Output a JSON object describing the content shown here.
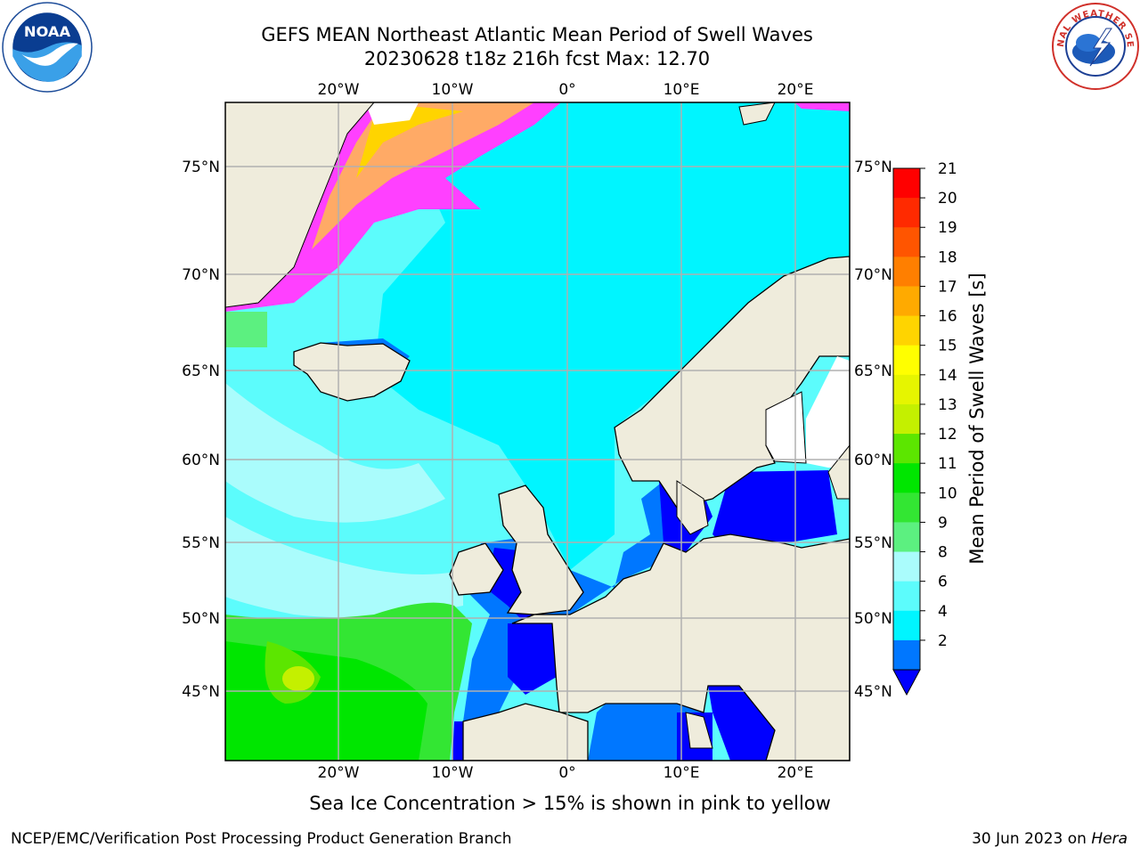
{
  "title_line1": "GEFS MEAN Northeast Atlantic Mean Period of Swell Waves",
  "title_line2": "20230628 t18z 216h fcst   Max: 12.70",
  "caption": "Sea Ice Concentration > 15% is shown in pink to yellow",
  "footer_left": "NCEP/EMC/Verification Post Processing Product Generation Branch",
  "footer_right_date": "30 Jun 2023 on",
  "footer_right_machine": "Hera",
  "logos": {
    "left": "noaa-logo",
    "right": "nws-logo"
  },
  "map": {
    "lon_labels": [
      "20°W",
      "10°W",
      "0°",
      "10°E",
      "20°E"
    ],
    "lat_labels": [
      "75°N",
      "70°N",
      "65°N",
      "60°N",
      "55°N",
      "50°N",
      "45°N"
    ],
    "land_color": "#efecdc",
    "grid_color": "#b0b0b0"
  },
  "colorbar": {
    "label": "Mean Period of Swell Waves [s]",
    "ticks": [
      "21",
      "20",
      "19",
      "18",
      "17",
      "16",
      "15",
      "14",
      "13",
      "12",
      "11",
      "10",
      "9",
      "8",
      "6",
      "4",
      "2"
    ],
    "colors": [
      "#ff0000",
      "#ff2a00",
      "#ff5500",
      "#ff7f00",
      "#ffaa00",
      "#ffd400",
      "#ffff00",
      "#e6f500",
      "#c4f000",
      "#5ce600",
      "#00e600",
      "#33e633",
      "#5cf080",
      "#aafcfc",
      "#5cfcfc",
      "#00f5ff",
      "#0077ff"
    ],
    "under_color": "#0000ff"
  }
}
